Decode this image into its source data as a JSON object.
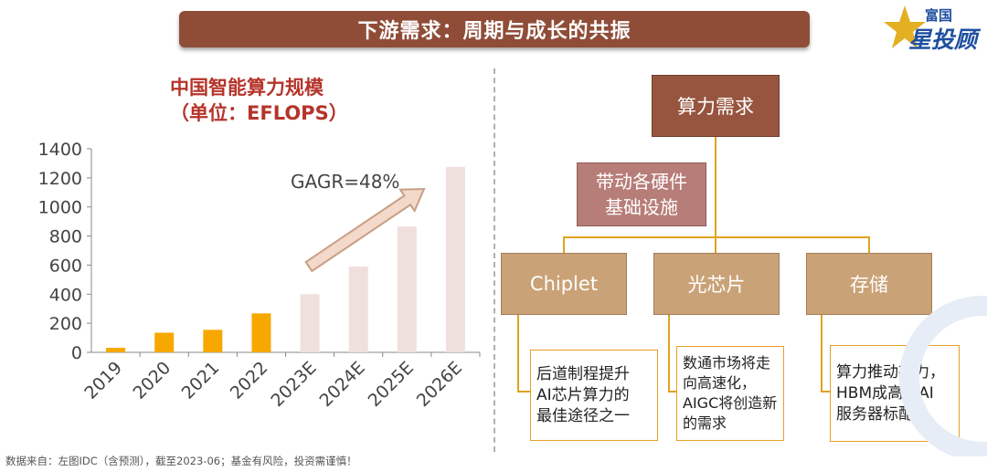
{
  "header": {
    "title": "下游需求：周期与成长的共振"
  },
  "logo": {
    "line1": "富国",
    "line2": "星投顾"
  },
  "chart_section": {
    "title_line1": "中国智能算力规模",
    "title_line2": "（单位：EFLOPS）"
  },
  "chart_data": {
    "type": "bar",
    "categories": [
      "2019",
      "2020",
      "2021",
      "2022",
      "2023E",
      "2024E",
      "2025E",
      "2026E"
    ],
    "values": [
      31,
      135,
      155,
      268,
      400,
      590,
      865,
      1275
    ],
    "ylim": [
      0,
      1400
    ],
    "yticks": [
      0,
      200,
      400,
      600,
      800,
      1000,
      1200,
      1400
    ],
    "annotation": "GAGR=48%",
    "grid": false,
    "colors": {
      "actual": "#f7a800",
      "forecast": "#efe0dd"
    }
  },
  "diagram": {
    "root": "算力需求",
    "driver_line1": "带动各硬件",
    "driver_line2": "基础设施",
    "children": [
      {
        "label": "Chiplet",
        "note": [
          "后道制程提升",
          "AI芯片算力的",
          "最佳途径之一"
        ]
      },
      {
        "label": "光芯片",
        "note": [
          "数通市场将走",
          "向高速化，",
          "AIGC将创造新",
          "的需求"
        ]
      },
      {
        "label": "存储",
        "note": [
          "算力推动存力，",
          "HBM成高端AI",
          "服务器标配"
        ]
      }
    ]
  },
  "footer": {
    "source": "数据来自：左图IDC（含预测），截至2023-06；基金有风险，投资需谨慎！"
  }
}
